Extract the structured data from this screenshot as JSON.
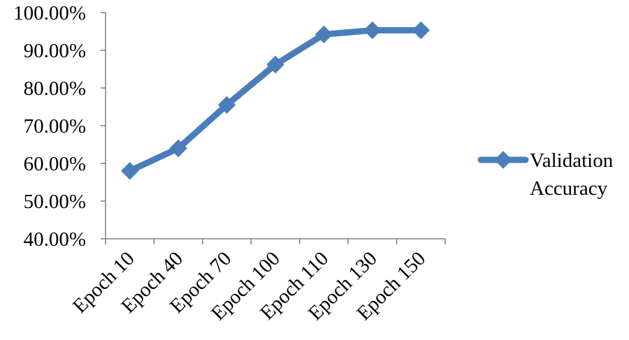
{
  "chart_data": {
    "type": "line",
    "categories": [
      "Epoch 10",
      "Epoch 40",
      "Epoch 70",
      "Epoch 100",
      "Epoch 110",
      "Epoch 130",
      "Epoch 150"
    ],
    "series": [
      {
        "name": "Validation Accuracy",
        "values": [
          0.58,
          0.64,
          0.755,
          0.862,
          0.942,
          0.953,
          0.953
        ],
        "color": "#4a7ebb",
        "marker": "diamond"
      }
    ],
    "y_ticks": [
      "40.00%",
      "50.00%",
      "60.00%",
      "70.00%",
      "80.00%",
      "90.00%",
      "100.00%"
    ],
    "ylim": [
      0.4,
      1.0
    ],
    "grid": false,
    "legend_position": "right",
    "legend": {
      "line1": "Validation",
      "line2": "Accuracy"
    }
  }
}
